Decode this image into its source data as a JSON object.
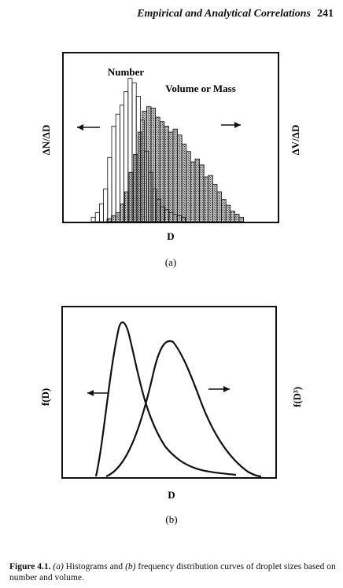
{
  "header": {
    "running_title": "Empirical and Analytical Correlations",
    "page_number": "241"
  },
  "panel_a": {
    "label": "(a)",
    "x_label": "D",
    "y_left_label": "ΔN/ΔD",
    "y_right_label": "ΔV/ΔD",
    "series_number_label": "Number",
    "series_volume_label": "Volume or Mass",
    "number_histogram": [
      0.03,
      0.06,
      0.12,
      0.22,
      0.43,
      0.64,
      0.72,
      0.78,
      0.87,
      0.96,
      0.93,
      0.84,
      0.68,
      0.47,
      0.33,
      0.22,
      0.15,
      0.1,
      0.08,
      0.06,
      0.05,
      0.04,
      0.03
    ],
    "volume_histogram": [
      0.02,
      0.04,
      0.06,
      0.12,
      0.2,
      0.33,
      0.45,
      0.6,
      0.74,
      0.77,
      0.76,
      0.7,
      0.67,
      0.64,
      0.6,
      0.62,
      0.58,
      0.52,
      0.47,
      0.4,
      0.42,
      0.38,
      0.3,
      0.31,
      0.25,
      0.2,
      0.15,
      0.11,
      0.07,
      0.05,
      0.03
    ]
  },
  "panel_b": {
    "label": "(b)",
    "x_label": "D",
    "y_left_label": "f(D)",
    "y_right_label": "f(D³)"
  },
  "caption": {
    "figure_number": "Figure 4.1.",
    "part_a": "(a)",
    "text_1": " Histograms and ",
    "part_b": "(b)",
    "text_2": " frequency distribution curves of droplet sizes based on number and volume."
  }
}
